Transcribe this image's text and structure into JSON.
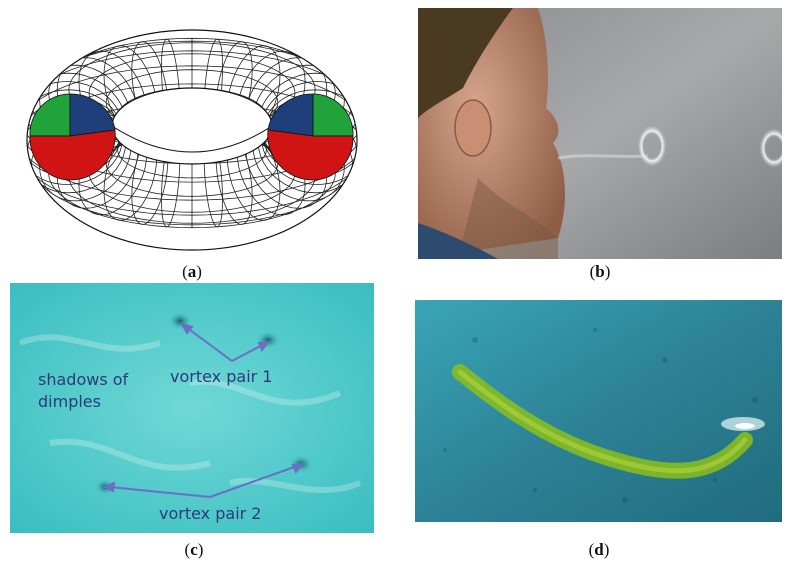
{
  "figure": {
    "panels": [
      {
        "id": "a",
        "caption": "a",
        "content": "wireframe torus with colored cross-sections"
      },
      {
        "id": "b",
        "caption": "b",
        "content": "person blowing smoke rings"
      },
      {
        "id": "c",
        "caption": "c",
        "content": "underwater view of vortex dimples"
      },
      {
        "id": "d",
        "caption": "d",
        "content": "dyed half vortex ring in water"
      }
    ],
    "annotations_c": {
      "shadows": "shadows of\ndimples",
      "shadows_line1": "shadows of",
      "shadows_line2": "dimples",
      "pair1": "vortex pair 1",
      "pair2": "vortex pair 2"
    },
    "colors": {
      "torus_green": "#1fa33a",
      "torus_blue": "#1f3f7a",
      "torus_red": "#d01414",
      "arrow": "#6b6fc4",
      "water_c": "#3ec6c6",
      "water_d": "#2a8aa0",
      "dye": "#8bbf1a"
    }
  }
}
